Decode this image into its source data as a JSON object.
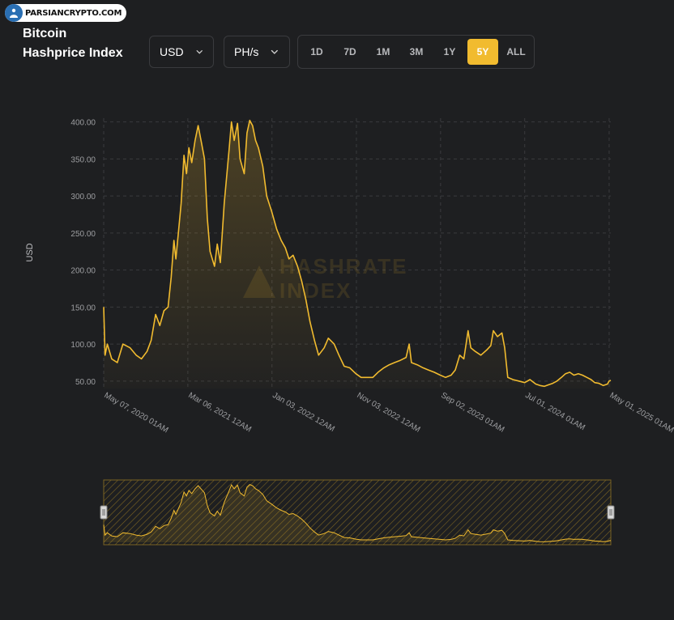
{
  "watermark": {
    "text": "PARSIANCRYPTO.COM"
  },
  "title_line1": "Bitcoin",
  "title_line2": "Hashprice Index",
  "controls": {
    "currency": "USD",
    "unit": "PH/s",
    "ranges": [
      "1D",
      "7D",
      "1M",
      "3M",
      "1Y",
      "5Y",
      "ALL"
    ],
    "active_range": "5Y"
  },
  "chart_watermark": {
    "line1": "HASHRATE",
    "line2": "INDEX"
  },
  "colors": {
    "accent": "#f1bb2f",
    "background": "#1e1f21",
    "grid": "#3a3b3e"
  },
  "chart_data": {
    "type": "area",
    "title": "Bitcoin Hashprice Index",
    "xlabel": "",
    "ylabel": "USD",
    "ylim": [
      40,
      405
    ],
    "yticks": [
      "400.00",
      "350.00",
      "300.00",
      "250.00",
      "200.00",
      "150.00",
      "100.00",
      "50.00"
    ],
    "ytick_values": [
      400,
      350,
      300,
      250,
      200,
      150,
      100,
      50
    ],
    "xticks": [
      "May 07, 2020 01AM",
      "Mar 06, 2021 12AM",
      "Jan 03, 2022 12AM",
      "Nov 03, 2022 12AM",
      "Sep 02, 2023 01AM",
      "Jul 01, 2024 01AM",
      "May 01, 2025 01AM"
    ],
    "xtick_dates": [
      "2020-05-07",
      "2021-03-06",
      "2022-01-03",
      "2022-11-03",
      "2023-09-02",
      "2024-07-01",
      "2025-05-01"
    ],
    "grid": true,
    "series": [
      {
        "values": [
          [
            "2020-05-07",
            150
          ],
          [
            "2020-05-12",
            85
          ],
          [
            "2020-05-20",
            100
          ],
          [
            "2020-06-05",
            80
          ],
          [
            "2020-06-25",
            75
          ],
          [
            "2020-07-15",
            100
          ],
          [
            "2020-08-10",
            95
          ],
          [
            "2020-09-01",
            85
          ],
          [
            "2020-09-20",
            80
          ],
          [
            "2020-10-10",
            90
          ],
          [
            "2020-10-25",
            105
          ],
          [
            "2020-11-10",
            140
          ],
          [
            "2020-11-25",
            125
          ],
          [
            "2020-12-10",
            145
          ],
          [
            "2020-12-25",
            150
          ],
          [
            "2021-01-05",
            190
          ],
          [
            "2021-01-15",
            240
          ],
          [
            "2021-01-22",
            215
          ],
          [
            "2021-02-01",
            255
          ],
          [
            "2021-02-10",
            290
          ],
          [
            "2021-02-20",
            355
          ],
          [
            "2021-03-01",
            330
          ],
          [
            "2021-03-10",
            365
          ],
          [
            "2021-03-20",
            345
          ],
          [
            "2021-04-01",
            375
          ],
          [
            "2021-04-12",
            395
          ],
          [
            "2021-04-25",
            370
          ],
          [
            "2021-05-05",
            350
          ],
          [
            "2021-05-15",
            270
          ],
          [
            "2021-05-25",
            225
          ],
          [
            "2021-06-10",
            205
          ],
          [
            "2021-06-20",
            235
          ],
          [
            "2021-07-01",
            210
          ],
          [
            "2021-07-15",
            290
          ],
          [
            "2021-08-01",
            360
          ],
          [
            "2021-08-10",
            400
          ],
          [
            "2021-08-20",
            375
          ],
          [
            "2021-09-01",
            398
          ],
          [
            "2021-09-10",
            350
          ],
          [
            "2021-09-25",
            330
          ],
          [
            "2021-10-05",
            385
          ],
          [
            "2021-10-15",
            402
          ],
          [
            "2021-10-25",
            395
          ],
          [
            "2021-11-05",
            375
          ],
          [
            "2021-11-15",
            365
          ],
          [
            "2021-12-01",
            340
          ],
          [
            "2021-12-15",
            300
          ],
          [
            "2022-01-01",
            280
          ],
          [
            "2022-01-20",
            255
          ],
          [
            "2022-02-05",
            240
          ],
          [
            "2022-02-20",
            230
          ],
          [
            "2022-03-05",
            215
          ],
          [
            "2022-03-20",
            220
          ],
          [
            "2022-04-05",
            205
          ],
          [
            "2022-04-20",
            185
          ],
          [
            "2022-05-05",
            160
          ],
          [
            "2022-05-20",
            130
          ],
          [
            "2022-06-05",
            105
          ],
          [
            "2022-06-20",
            85
          ],
          [
            "2022-07-10",
            95
          ],
          [
            "2022-07-25",
            108
          ],
          [
            "2022-08-15",
            100
          ],
          [
            "2022-09-01",
            85
          ],
          [
            "2022-09-20",
            70
          ],
          [
            "2022-10-10",
            68
          ],
          [
            "2022-11-01",
            60
          ],
          [
            "2022-11-20",
            55
          ],
          [
            "2022-12-10",
            55
          ],
          [
            "2023-01-01",
            55
          ],
          [
            "2023-01-20",
            62
          ],
          [
            "2023-02-10",
            68
          ],
          [
            "2023-03-01",
            72
          ],
          [
            "2023-03-20",
            75
          ],
          [
            "2023-04-10",
            78
          ],
          [
            "2023-05-01",
            82
          ],
          [
            "2023-05-12",
            100
          ],
          [
            "2023-05-20",
            75
          ],
          [
            "2023-06-10",
            72
          ],
          [
            "2023-07-01",
            68
          ],
          [
            "2023-07-20",
            65
          ],
          [
            "2023-08-10",
            62
          ],
          [
            "2023-09-01",
            58
          ],
          [
            "2023-09-20",
            55
          ],
          [
            "2023-10-10",
            58
          ],
          [
            "2023-10-25",
            65
          ],
          [
            "2023-11-10",
            85
          ],
          [
            "2023-11-25",
            80
          ],
          [
            "2023-12-10",
            118
          ],
          [
            "2023-12-20",
            95
          ],
          [
            "2024-01-05",
            90
          ],
          [
            "2024-01-25",
            85
          ],
          [
            "2024-02-15",
            92
          ],
          [
            "2024-03-01",
            98
          ],
          [
            "2024-03-10",
            118
          ],
          [
            "2024-03-25",
            110
          ],
          [
            "2024-04-10",
            115
          ],
          [
            "2024-04-20",
            95
          ],
          [
            "2024-05-01",
            55
          ],
          [
            "2024-05-20",
            52
          ],
          [
            "2024-06-10",
            50
          ],
          [
            "2024-07-01",
            48
          ],
          [
            "2024-07-20",
            52
          ],
          [
            "2024-08-10",
            46
          ],
          [
            "2024-08-25",
            44
          ],
          [
            "2024-09-10",
            43
          ],
          [
            "2024-09-25",
            45
          ],
          [
            "2024-10-10",
            47
          ],
          [
            "2024-10-25",
            50
          ],
          [
            "2024-11-10",
            55
          ],
          [
            "2024-11-25",
            60
          ],
          [
            "2024-12-10",
            62
          ],
          [
            "2024-12-25",
            58
          ],
          [
            "2025-01-10",
            60
          ],
          [
            "2025-01-25",
            58
          ],
          [
            "2025-02-10",
            55
          ],
          [
            "2025-02-25",
            52
          ],
          [
            "2025-03-10",
            48
          ],
          [
            "2025-03-25",
            47
          ],
          [
            "2025-04-10",
            44
          ],
          [
            "2025-04-25",
            46
          ],
          [
            "2025-05-01",
            50
          ],
          [
            "2025-05-07",
            51
          ]
        ]
      }
    ],
    "navigator": {
      "range": [
        "2020-05-07",
        "2025-05-07"
      ]
    }
  }
}
